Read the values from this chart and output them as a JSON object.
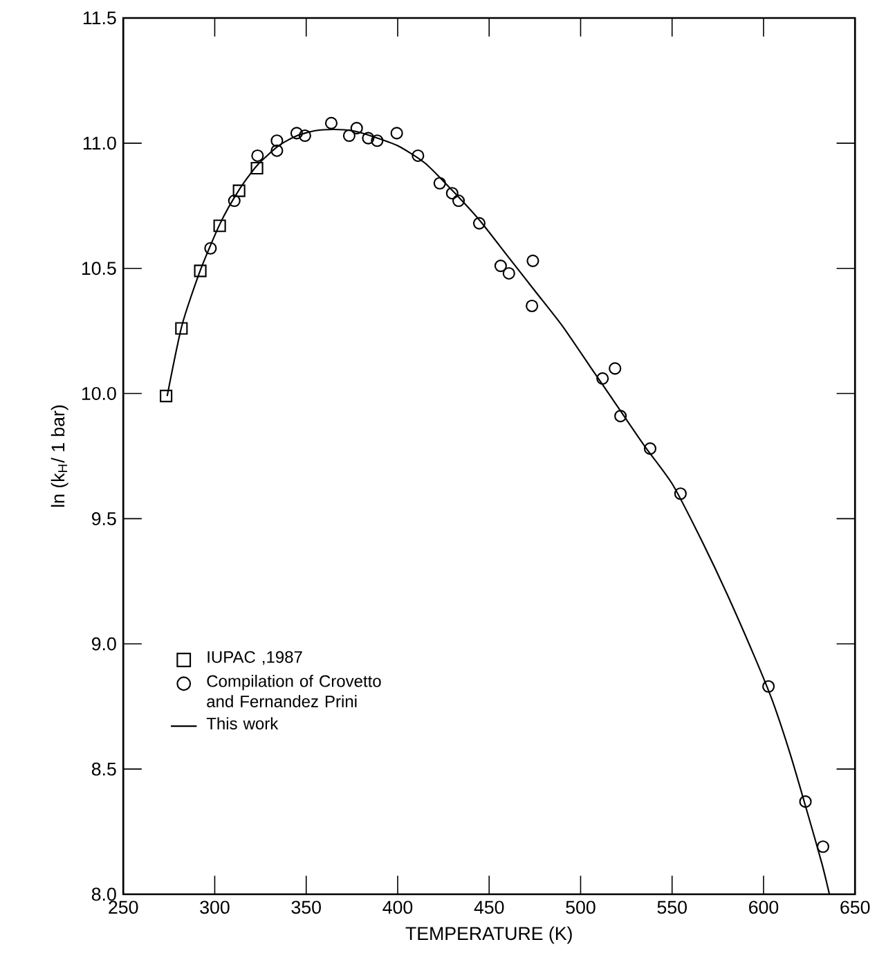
{
  "chart_data": {
    "type": "scatter",
    "xlabel": "TEMPERATURE (K)",
    "ylabel": "ln (k$_{H}$/ 1 bar)",
    "xlim": [
      250,
      650
    ],
    "xticks": [
      250,
      300,
      350,
      400,
      450,
      500,
      550,
      600,
      650
    ],
    "ylim": [
      8.0,
      11.5
    ],
    "yticks": [
      {
        "value": 8.0,
        "label": "8.0"
      },
      {
        "value": 8.5,
        "label": "8.5"
      },
      {
        "value": 9.0,
        "label": "9.0"
      },
      {
        "value": 9.5,
        "label": "9.5"
      },
      {
        "value": 10.0,
        "label": "10.0"
      },
      {
        "value": 10.5,
        "label": "10.5"
      },
      {
        "value": 11.0,
        "label": "11.0"
      },
      {
        "value": 11.5,
        "label": "11.5"
      }
    ],
    "grid": false,
    "legend": "bottom left",
    "series": [
      {
        "name": "IUPAC ,1987",
        "marker": "square",
        "color": "#000000",
        "x": [
          273.4,
          281.8,
          292.1,
          302.7,
          313.3,
          323.1
        ],
        "values": [
          9.99,
          10.26,
          10.49,
          10.67,
          10.81,
          10.9
        ]
      },
      {
        "name": "Compilation of Crovetto and Fernandez Prini",
        "marker": "circle",
        "color": "#000000",
        "x": [
          297.7,
          310.7,
          323.4,
          334,
          334,
          344.8,
          349.3,
          363.7,
          373.5,
          377.6,
          383.9,
          388.8,
          399.5,
          411.1,
          423,
          429.8,
          433.3,
          444.6,
          456.3,
          460.8,
          473.9,
          473.4,
          512,
          518.8,
          521.8,
          538,
          554.6,
          602.7,
          622.9,
          632.5
        ],
        "values": [
          10.58,
          10.77,
          10.95,
          10.97,
          11.01,
          11.04,
          11.03,
          11.08,
          11.03,
          11.06,
          11.02,
          11.01,
          11.04,
          10.95,
          10.84,
          10.8,
          10.77,
          10.68,
          10.51,
          10.48,
          10.53,
          10.35,
          10.06,
          10.1,
          9.91,
          9.78,
          9.6,
          8.83,
          8.37,
          8.19
        ]
      },
      {
        "name": "This work",
        "type": "line",
        "marker": "none",
        "line_style": "solid",
        "color": "#000000",
        "x": [
          274,
          282,
          292,
          303,
          313,
          323,
          335,
          345,
          355,
          365,
          375,
          385,
          400,
          415,
          430,
          445,
          460,
          475,
          490,
          505,
          520,
          535,
          550,
          565,
          580,
          595,
          605,
          615,
          625,
          632,
          636
        ],
        "values": [
          9.99,
          10.27,
          10.49,
          10.68,
          10.81,
          10.91,
          10.99,
          11.03,
          11.05,
          11.055,
          11.05,
          11.03,
          10.99,
          10.92,
          10.81,
          10.69,
          10.55,
          10.41,
          10.27,
          10.11,
          9.95,
          9.79,
          9.64,
          9.43,
          9.2,
          8.95,
          8.77,
          8.55,
          8.3,
          8.12,
          8.0
        ]
      }
    ]
  }
}
